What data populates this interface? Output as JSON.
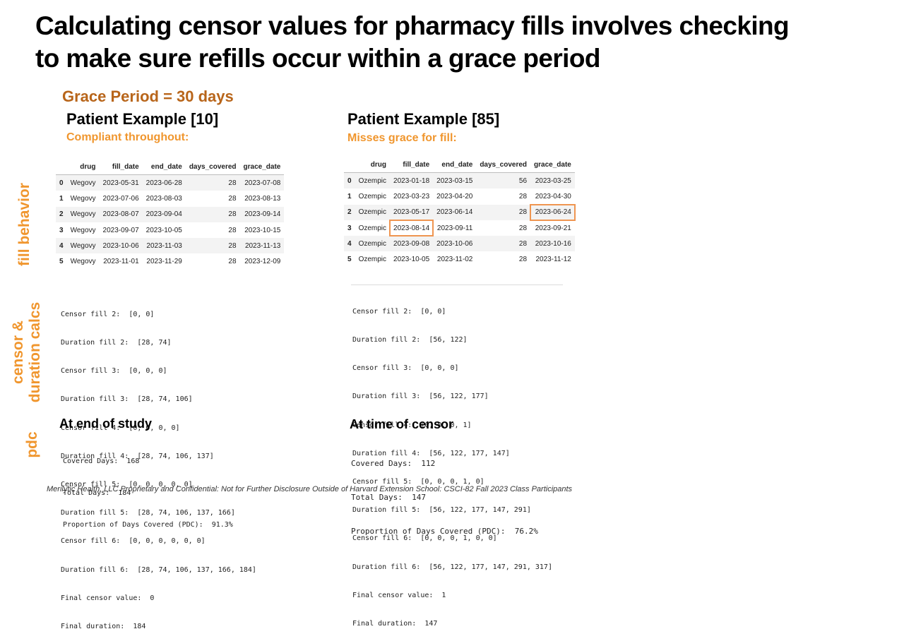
{
  "slide": {
    "title_line1": "Calculating censor values for pharmacy fills involves checking",
    "title_line2": "to make sure refills occur within a grace period",
    "grace_period": "Grace Period = 30 days",
    "side_labels": {
      "fill_behavior": "fill behavior",
      "censor_line1": "censor &",
      "censor_line2": "duration calcs",
      "pdc": "pdc"
    },
    "footer": "Merilytic Health, LLC Proprietary and Confidential: Not for Further Disclosure Outside of Harvard Extension School: CSCI-82 Fall 2023 Class Participants"
  },
  "columns": [
    "",
    "drug",
    "fill_date",
    "end_date",
    "days_covered",
    "grace_date"
  ],
  "left": {
    "heading": "Patient Example [10]",
    "subheading": "Compliant throughout:",
    "rows": [
      [
        "0",
        "Wegovy",
        "2023-05-31",
        "2023-06-28",
        "28",
        "2023-07-08"
      ],
      [
        "1",
        "Wegovy",
        "2023-07-06",
        "2023-08-03",
        "28",
        "2023-08-13"
      ],
      [
        "2",
        "Wegovy",
        "2023-08-07",
        "2023-09-04",
        "28",
        "2023-09-14"
      ],
      [
        "3",
        "Wegovy",
        "2023-09-07",
        "2023-10-05",
        "28",
        "2023-10-15"
      ],
      [
        "4",
        "Wegovy",
        "2023-10-06",
        "2023-11-03",
        "28",
        "2023-11-13"
      ],
      [
        "5",
        "Wegovy",
        "2023-11-01",
        "2023-11-29",
        "28",
        "2023-12-09"
      ]
    ],
    "calc_lines": [
      "Censor fill 2:  [0, 0]",
      "Duration fill 2:  [28, 74]",
      "Censor fill 3:  [0, 0, 0]",
      "Duration fill 3:  [28, 74, 106]",
      "Censor fill 4:  [0, 0, 0, 0]",
      "Duration fill 4:  [28, 74, 106, 137]",
      "Censor fill 5:  [0, 0, 0, 0, 0]",
      "Duration fill 5:  [28, 74, 106, 137, 166]",
      "Censor fill 6:  [0, 0, 0, 0, 0, 0]",
      "Duration fill 6:  [28, 74, 106, 137, 166, 184]",
      "Final censor value:  0",
      "Final duration:  184"
    ],
    "pdc_heading": "At end of study",
    "pdc_lines": [
      "Covered Days:  168",
      "Total Days:  184",
      "Proportion of Days Covered (PDC):  91.3%"
    ]
  },
  "right": {
    "heading": "Patient Example [85]",
    "subheading": "Misses grace for fill:",
    "rows": [
      [
        "0",
        "Ozempic",
        "2023-01-18",
        "2023-03-15",
        "56",
        "2023-03-25"
      ],
      [
        "1",
        "Ozempic",
        "2023-03-23",
        "2023-04-20",
        "28",
        "2023-04-30"
      ],
      [
        "2",
        "Ozempic",
        "2023-05-17",
        "2023-06-14",
        "28",
        "2023-06-24"
      ],
      [
        "3",
        "Ozempic",
        "2023-08-14",
        "2023-09-11",
        "28",
        "2023-09-21"
      ],
      [
        "4",
        "Ozempic",
        "2023-09-08",
        "2023-10-06",
        "28",
        "2023-10-16"
      ],
      [
        "5",
        "Ozempic",
        "2023-10-05",
        "2023-11-02",
        "28",
        "2023-11-12"
      ]
    ],
    "highlighted_cells": [
      {
        "row": 2,
        "column": "grace_date"
      },
      {
        "row": 3,
        "column": "fill_date"
      }
    ],
    "highlight_color": "#ef9550",
    "calc_lines": [
      "Censor fill 2:  [0, 0]",
      "Duration fill 2:  [56, 122]",
      "Censor fill 3:  [0, 0, 0]",
      "Duration fill 3:  [56, 122, 177]",
      "Censor fill 4:  [0, 0, 0, 1]",
      "Duration fill 4:  [56, 122, 177, 147]",
      "Censor fill 5:  [0, 0, 0, 1, 0]",
      "Duration fill 5:  [56, 122, 177, 147, 291]",
      "Censor fill 6:  [0, 0, 0, 1, 0, 0]",
      "Duration fill 6:  [56, 122, 177, 147, 291, 317]",
      "Final censor value:  1",
      "Final duration:  147"
    ],
    "pdc_heading": "At time of censor",
    "pdc_lines": [
      "Covered Days:  112",
      "Total Days:  147",
      "Proportion of Days Covered (PDC):  76.2%"
    ]
  },
  "colors": {
    "accent_orange": "#f0962e",
    "grace_brown": "#b8651a"
  }
}
